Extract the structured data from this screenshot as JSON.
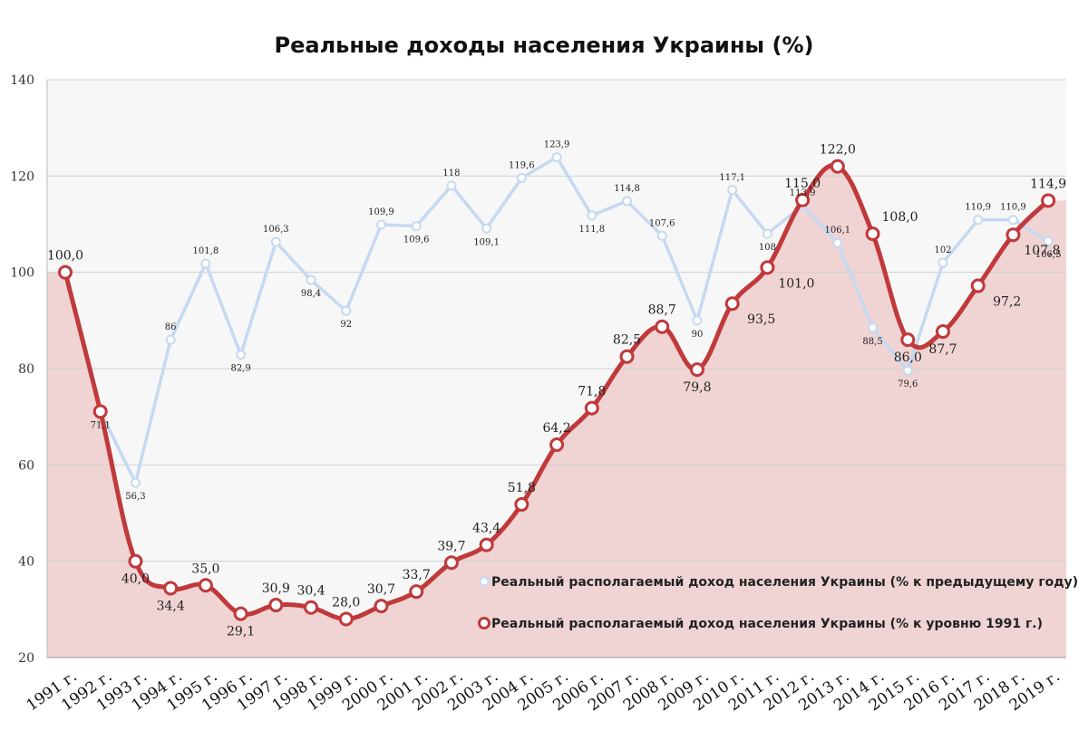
{
  "chart_data": {
    "type": "line",
    "title": "Реальные доходы населения Украины (%)",
    "xlabel": "",
    "ylabel": "",
    "ylim": [
      20,
      140
    ],
    "yticks": [
      20,
      40,
      60,
      80,
      100,
      120,
      140
    ],
    "grid": true,
    "legend": "bottom-right",
    "categories": [
      "1991 г.",
      "1992 г.",
      "1993 г.",
      "1994 г.",
      "1995 г.",
      "1996 г.",
      "1997 г.",
      "1998 г.",
      "1999 г.",
      "2000 г.",
      "2001 г.",
      "2002 г.",
      "2003 г.",
      "2004 г.",
      "2005 г.",
      "2006 г.",
      "2007 г.",
      "2008 г.",
      "2009 г.",
      "2010 г.",
      "2011 г.",
      "2012 г.",
      "2013 г.",
      "2014 г.",
      "2015 г.",
      "2016 г.",
      "2017 г.",
      "2018 г.",
      "2019 г."
    ],
    "series": [
      {
        "name": "Реальный располагаемый доход населения Украины (% к предыдущему году)",
        "color": "#c5d9f1",
        "values": [
          null,
          71.1,
          56.3,
          86,
          101.8,
          82.9,
          106.3,
          98.4,
          92,
          109.9,
          109.6,
          118,
          109.1,
          119.6,
          123.9,
          111.8,
          114.8,
          107.6,
          90,
          117.1,
          108,
          113.9,
          106.1,
          88.5,
          79.6,
          102,
          110.9,
          110.9,
          106.5
        ],
        "labels": [
          "",
          "71,1",
          "56,3",
          "86",
          "101,8",
          "82,9",
          "106,3",
          "98,4",
          "92",
          "109,9",
          "109,6",
          "118",
          "109,1",
          "119,6",
          "123,9",
          "111,8",
          "114,8",
          "107,6",
          "90",
          "117,1",
          "108",
          "113,9",
          "106,1",
          "88,5",
          "79,6",
          "102",
          "110,9",
          "110,9",
          "106,5"
        ]
      },
      {
        "name": "Реальный располагаемый доход населения Украины (% к уровню 1991 г.)",
        "color": "#c0393b",
        "area_color": "#f0d3d3",
        "values": [
          100,
          71.1,
          40,
          34.4,
          35,
          29.1,
          30.9,
          30.4,
          28,
          30.7,
          33.7,
          39.7,
          43.4,
          51.8,
          64.2,
          71.8,
          82.5,
          88.7,
          79.8,
          93.5,
          101,
          115,
          122,
          108,
          86,
          87.7,
          97.2,
          107.8,
          114.9
        ],
        "labels": [
          "100,0",
          "",
          "40,0",
          "34,4",
          "35,0",
          "29,1",
          "30,9",
          "30,4",
          "28,0",
          "30,7",
          "33,7",
          "39,7",
          "43,4",
          "51,8",
          "64,2",
          "71,8",
          "82,5",
          "88,7",
          "79,8",
          "93,5",
          "101,0",
          "115,0",
          "122,0",
          "108,0",
          "86,0",
          "87,7",
          "97,2",
          "107,8",
          "114,9"
        ]
      }
    ]
  }
}
